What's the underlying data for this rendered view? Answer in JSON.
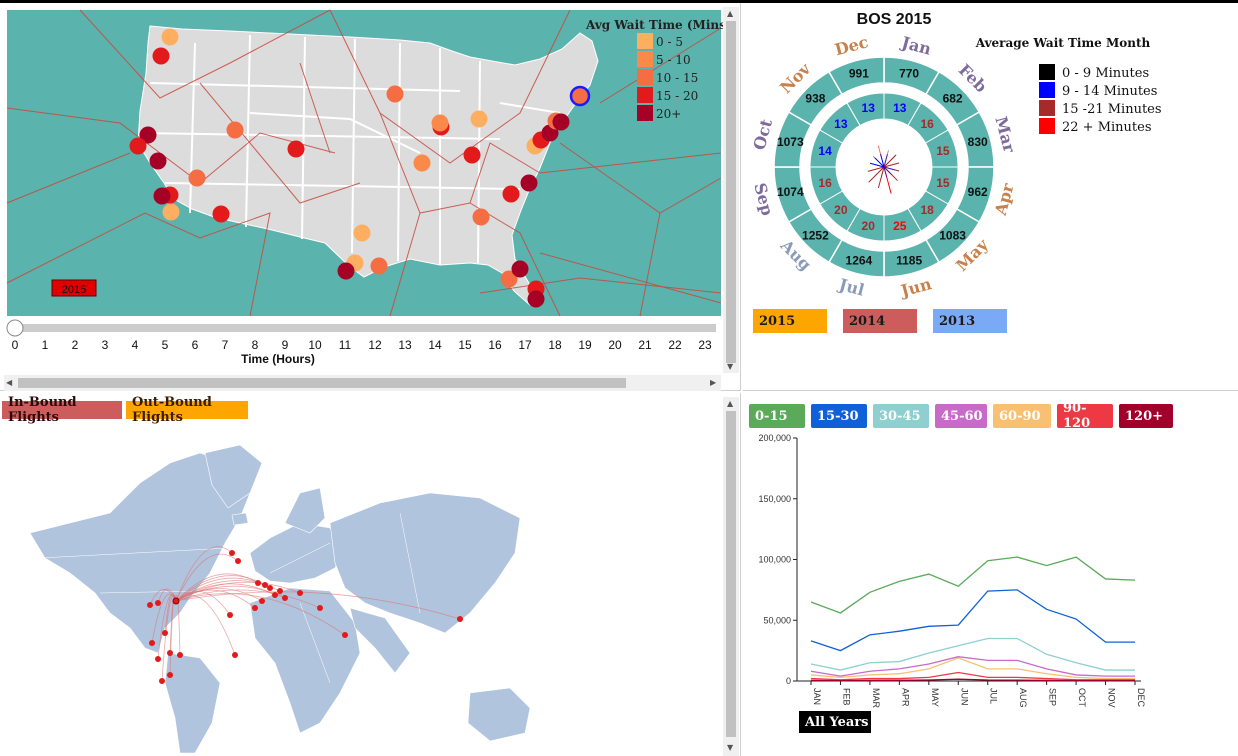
{
  "us_panel": {
    "year_badge": "2015",
    "legend_title": "Avg Wait Time (Mins)",
    "legend": [
      {
        "label": "0 - 5",
        "color": "#fdae61"
      },
      {
        "label": "5 - 10",
        "color": "#fb8a4a"
      },
      {
        "label": "10 - 15",
        "color": "#f46d43"
      },
      {
        "label": "15 - 20",
        "color": "#e31a1c"
      },
      {
        "label": "20+",
        "color": "#a50026"
      }
    ],
    "slider_ticks": [
      "0",
      "1",
      "2",
      "3",
      "4",
      "5",
      "6",
      "7",
      "8",
      "9",
      "10",
      "11",
      "12",
      "13",
      "14",
      "15",
      "16",
      "17",
      "18",
      "19",
      "20",
      "21",
      "22",
      "23"
    ],
    "slider_value": 0,
    "slider_label": "Time (Hours)"
  },
  "radial_panel": {
    "title": "BOS 2015",
    "legend_title": "Average Wait Time Month",
    "legend": [
      {
        "label": "0 - 9 Minutes",
        "color": "#000000"
      },
      {
        "label": "9 - 14 Minutes",
        "color": "#0000ff"
      },
      {
        "label": "15 -21 Minutes",
        "color": "#a52a2a"
      },
      {
        "label": "22 + Minutes",
        "color": "#ff0000"
      }
    ],
    "months": [
      {
        "name": "Jan",
        "count": "770",
        "wait": "13",
        "name_color": "#7e6b9e",
        "wait_color": "#0000ff"
      },
      {
        "name": "Feb",
        "count": "682",
        "wait": "16",
        "name_color": "#7e6b9e",
        "wait_color": "#a52a2a"
      },
      {
        "name": "Mar",
        "count": "830",
        "wait": "15",
        "name_color": "#7e6b9e",
        "wait_color": "#a52a2a"
      },
      {
        "name": "Apr",
        "count": "962",
        "wait": "15",
        "name_color": "#c8814a",
        "wait_color": "#a52a2a"
      },
      {
        "name": "May",
        "count": "1083",
        "wait": "18",
        "name_color": "#c8814a",
        "wait_color": "#a52a2a"
      },
      {
        "name": "Jun",
        "count": "1185",
        "wait": "25",
        "name_color": "#c8814a",
        "wait_color": "#ff0000"
      },
      {
        "name": "Jul",
        "count": "1264",
        "wait": "20",
        "name_color": "#8a9bb8",
        "wait_color": "#a52a2a"
      },
      {
        "name": "Aug",
        "count": "1252",
        "wait": "20",
        "name_color": "#8a9bb8",
        "wait_color": "#a52a2a"
      },
      {
        "name": "Sep",
        "count": "1074",
        "wait": "16",
        "name_color": "#7e6b9e",
        "wait_color": "#a52a2a"
      },
      {
        "name": "Oct",
        "count": "1073",
        "wait": "14",
        "name_color": "#7e6b9e",
        "wait_color": "#0000ff"
      },
      {
        "name": "Nov",
        "count": "938",
        "wait": "13",
        "name_color": "#c8814a",
        "wait_color": "#0000ff"
      },
      {
        "name": "Dec",
        "count": "991",
        "wait": "13",
        "name_color": "#c8814a",
        "wait_color": "#0000ff"
      }
    ],
    "year_buttons": [
      {
        "label": "2015",
        "color": "#ffa500"
      },
      {
        "label": "2014",
        "color": "#cd5c5c"
      },
      {
        "label": "2013",
        "color": "#7aaaf5"
      }
    ]
  },
  "world_panel": {
    "inbound_label": "In-Bound Flights",
    "outbound_label": "Out-Bound Flights"
  },
  "line_panel": {
    "filters": [
      {
        "label": "0-15",
        "color": "#5aaa5a"
      },
      {
        "label": "15-30",
        "color": "#1060d8"
      },
      {
        "label": "30-45",
        "color": "#8ecfd0"
      },
      {
        "label": "45-60",
        "color": "#c86ac8"
      },
      {
        "label": "60-90",
        "color": "#f8c070"
      },
      {
        "label": "90-120",
        "color": "#ee3844"
      },
      {
        "label": "120+",
        "color": "#a0002a"
      }
    ],
    "all_years_label": "All Years"
  },
  "chart_data": {
    "type": "line",
    "categories": [
      "JAN",
      "FEB",
      "MAR",
      "APR",
      "MAY",
      "JUN",
      "JUL",
      "AUG",
      "SEP",
      "OCT",
      "NOV",
      "DEC"
    ],
    "ylim": [
      0,
      200000
    ],
    "yticks": [
      "0",
      "50,000",
      "100,000",
      "150,000",
      "200,000"
    ],
    "ytick_values": [
      0,
      50000,
      100000,
      150000,
      200000
    ],
    "series": [
      {
        "name": "0-15",
        "color": "#5aaa5a",
        "values": [
          65000,
          56000,
          73000,
          82000,
          88000,
          78000,
          99000,
          102000,
          95000,
          102000,
          84000,
          83000
        ]
      },
      {
        "name": "15-30",
        "color": "#1060d8",
        "values": [
          33000,
          25000,
          38000,
          41000,
          45000,
          46000,
          74000,
          75000,
          59000,
          51000,
          32000,
          32000
        ]
      },
      {
        "name": "30-45",
        "color": "#8ecfd0",
        "values": [
          14000,
          9000,
          15000,
          16000,
          23000,
          29000,
          35000,
          35000,
          22000,
          15000,
          9000,
          9000
        ]
      },
      {
        "name": "45-60",
        "color": "#c86ac8",
        "values": [
          8000,
          4000,
          8000,
          10000,
          14000,
          20000,
          17000,
          17000,
          10000,
          5000,
          4000,
          4000
        ]
      },
      {
        "name": "60-90",
        "color": "#f8c070",
        "values": [
          5000,
          3000,
          5000,
          6000,
          10000,
          19000,
          10000,
          10000,
          6000,
          3000,
          2000,
          2000
        ]
      },
      {
        "name": "90-120",
        "color": "#ee3844",
        "values": [
          2000,
          1000,
          2000,
          2000,
          3000,
          7000,
          3000,
          3000,
          2000,
          1000,
          1000,
          1000
        ]
      },
      {
        "name": "120+",
        "color": "#a0002a",
        "values": [
          500,
          300,
          500,
          600,
          800,
          1500,
          800,
          700,
          500,
          300,
          300,
          300
        ]
      }
    ]
  }
}
